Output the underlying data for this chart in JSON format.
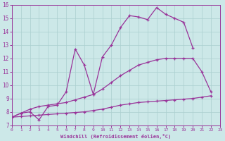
{
  "xlabel": "Windchill (Refroidissement éolien,°C)",
  "bg_color": "#cce8e8",
  "line_color": "#993399",
  "xlim": [
    0,
    23
  ],
  "ylim": [
    7,
    16
  ],
  "xticks": [
    0,
    1,
    2,
    3,
    4,
    5,
    6,
    7,
    8,
    9,
    10,
    11,
    12,
    13,
    14,
    15,
    16,
    17,
    18,
    19,
    20,
    21,
    22,
    23
  ],
  "yticks": [
    7,
    8,
    9,
    10,
    11,
    12,
    13,
    14,
    15,
    16
  ],
  "curve1_x": [
    0,
    1,
    2,
    3,
    4,
    5,
    6,
    7,
    8,
    9,
    10,
    11,
    12,
    13,
    14,
    15,
    16,
    17,
    18,
    19,
    20
  ],
  "curve1_y": [
    7.6,
    7.9,
    8.0,
    7.4,
    8.4,
    8.5,
    9.5,
    12.7,
    11.5,
    9.3,
    12.1,
    13.0,
    14.3,
    15.2,
    15.1,
    14.9,
    15.8,
    15.3,
    15.0,
    14.7,
    12.8
  ],
  "curve2_x": [
    0,
    1,
    2,
    3,
    4,
    5,
    6,
    7,
    8,
    9,
    10,
    11,
    12,
    13,
    14,
    15,
    16,
    17,
    18,
    19,
    20,
    21,
    22
  ],
  "curve2_y": [
    7.6,
    7.9,
    8.2,
    8.4,
    8.5,
    8.6,
    8.7,
    8.9,
    9.1,
    9.3,
    9.7,
    10.2,
    10.7,
    11.1,
    11.5,
    11.7,
    11.9,
    12.0,
    12.0,
    12.0,
    12.0,
    11.0,
    9.5
  ],
  "curve3_x": [
    0,
    1,
    2,
    3,
    4,
    5,
    6,
    7,
    8,
    9,
    10,
    11,
    12,
    13,
    14,
    15,
    16,
    17,
    18,
    19,
    20,
    21,
    22
  ],
  "curve3_y": [
    7.6,
    7.65,
    7.7,
    7.75,
    7.8,
    7.85,
    7.9,
    7.95,
    8.0,
    8.1,
    8.2,
    8.35,
    8.5,
    8.6,
    8.7,
    8.75,
    8.8,
    8.85,
    8.9,
    8.95,
    9.0,
    9.1,
    9.2
  ]
}
